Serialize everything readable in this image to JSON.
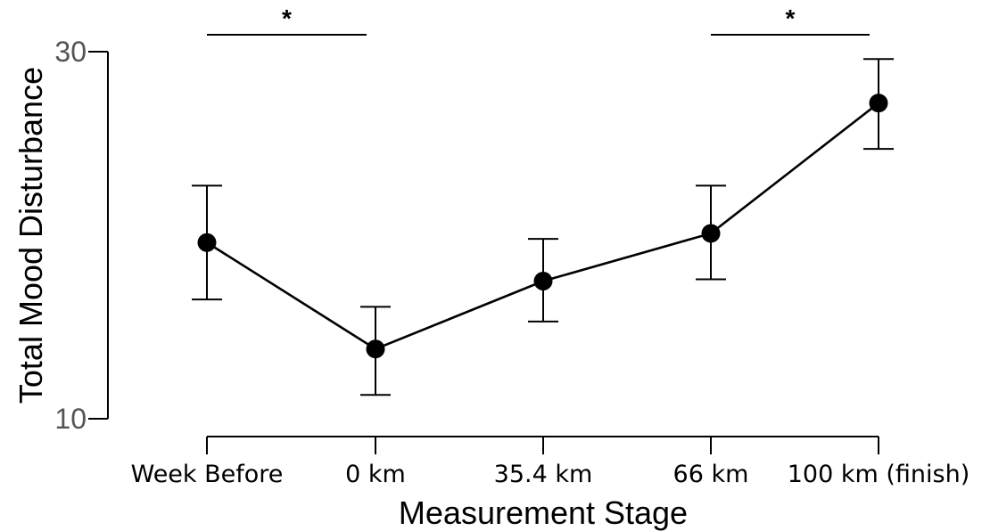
{
  "chart_data": {
    "type": "line",
    "title": "",
    "xlabel": "Measurement Stage",
    "ylabel": "Total Mood Disturbance",
    "categories": [
      "Week Before",
      "0 km",
      "35.4 km",
      "66 km",
      "100 km (finish)"
    ],
    "series": [
      {
        "values": [
          19.6,
          13.8,
          17.5,
          20.1,
          27.2
        ],
        "error_upper": [
          22.7,
          16.1,
          19.8,
          22.7,
          29.6
        ],
        "error_lower": [
          16.5,
          11.3,
          15.3,
          17.6,
          24.7
        ]
      }
    ],
    "ylim": [
      10,
      30
    ],
    "yticks": [
      "10",
      "30"
    ],
    "grid": false,
    "legend": "none",
    "significance": [
      {
        "from": "Week Before",
        "to": "0 km",
        "label": "*"
      },
      {
        "from": "66 km",
        "to": "100 km (finish)",
        "label": "*"
      }
    ],
    "colors": {
      "line": "#000000",
      "marker": "#000000",
      "ytick_text": "#555555"
    }
  }
}
